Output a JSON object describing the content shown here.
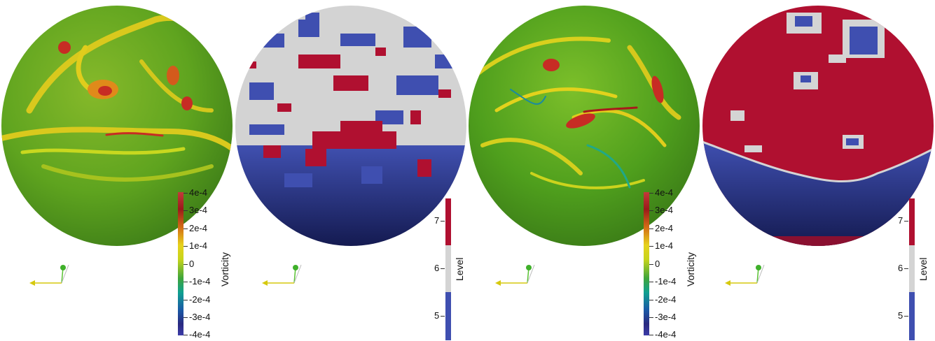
{
  "panels": [
    {
      "type": "vorticity",
      "colorbar": {
        "title": "Vorticity",
        "ticks": [
          "4e-4",
          "3e-4",
          "2e-4",
          "1e-4",
          "0",
          "-1e-4",
          "-2e-4",
          "-3e-4",
          "-4e-4"
        ]
      }
    },
    {
      "type": "level",
      "colorbar": {
        "title": "Level",
        "ticks": [
          "7",
          "6",
          "5"
        ]
      }
    },
    {
      "type": "vorticity",
      "colorbar": {
        "title": "Vorticity",
        "ticks": [
          "4e-4",
          "3e-4",
          "2e-4",
          "1e-4",
          "0",
          "-1e-4",
          "-2e-4",
          "-3e-4",
          "-4e-4"
        ]
      }
    },
    {
      "type": "level",
      "colorbar": {
        "title": "Level",
        "ticks": [
          "7",
          "6",
          "5"
        ]
      }
    }
  ],
  "colors": {
    "vort_green": "#5aa51e",
    "vort_yellow": "#e2d21c",
    "vort_red": "#c72c24",
    "level_red": "#b01030",
    "level_grey": "#d4d4d4",
    "level_blue": "#3f4fb0"
  }
}
